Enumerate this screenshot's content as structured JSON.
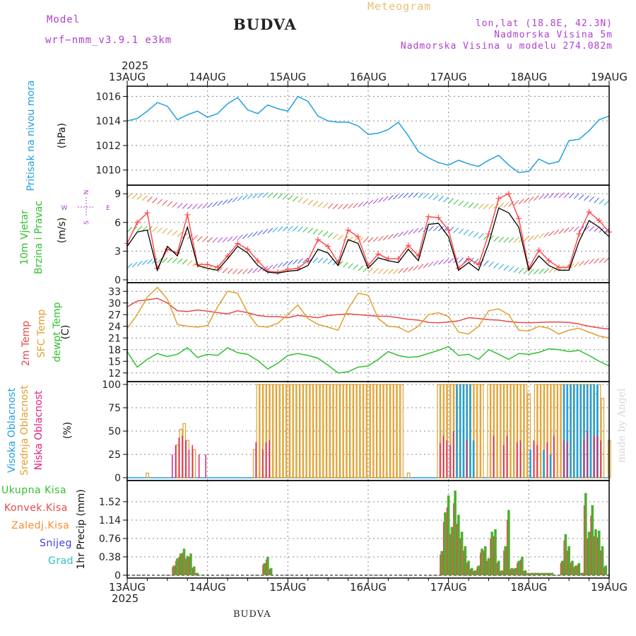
{
  "header": {
    "model_label": "Model",
    "model_name": "wrf−nmm_v3.9.1  e3km",
    "station": "BUDVA",
    "meteogram": "Meteogram",
    "lonlat": "lon,lat (18.8E, 42.3N)",
    "altitude": "Nadmorska Visina 5m",
    "model_altitude": "Nadmorska Visina u modelu 274.082m",
    "year_top": "2025",
    "year_bottom": "2025",
    "footer_station": "BUDVA",
    "watermark": "made by Angel"
  },
  "colors": {
    "pressure": "#1fa0e0",
    "wind_speed": "#000000",
    "wind_gust": "#ff4d4d",
    "temp2m": "#e84848",
    "sfc_temp": "#e0a030",
    "dewpt": "#30c030",
    "cloud_high": "#1fa0e0",
    "cloud_mid": "#e0a030",
    "cloud_low": "#e0207a",
    "precip_total": "#4caf30",
    "precip_conv": "#e84848",
    "precip_frozen": "#ff8c30",
    "precip_snow": "#4040e0",
    "precip_graupel": "#30c0c0",
    "violet": "#b040d0",
    "grid": "#888888"
  },
  "chart_data": [
    {
      "type": "line",
      "name": "pressure",
      "ylabel_1": "Pritisak na nivou mora",
      "ylabel_2": "(hPa)",
      "yticks": [
        "1016",
        "1014",
        "1012",
        "1010"
      ],
      "ylim": [
        1009,
        1016.6
      ],
      "x_hours": [
        0,
        3,
        6,
        9,
        12,
        15,
        18,
        21,
        24,
        27,
        30,
        33,
        36,
        39,
        42,
        45,
        48,
        51,
        54,
        57,
        60,
        63,
        66,
        69,
        72,
        75,
        78,
        81,
        84,
        87,
        90,
        93,
        96,
        99,
        102,
        105,
        108,
        111,
        114,
        117,
        120,
        123,
        126,
        129,
        132,
        135,
        138,
        141,
        144
      ],
      "values": [
        1014.0,
        1014.2,
        1014.8,
        1015.5,
        1015.2,
        1014.1,
        1014.5,
        1014.8,
        1014.3,
        1014.6,
        1015.4,
        1015.9,
        1014.9,
        1014.6,
        1015.3,
        1015.0,
        1014.8,
        1016.0,
        1015.6,
        1014.4,
        1014.0,
        1013.9,
        1013.9,
        1013.6,
        1012.9,
        1013.0,
        1013.3,
        1013.9,
        1012.8,
        1011.5,
        1011.0,
        1010.6,
        1010.4,
        1010.8,
        1010.5,
        1010.3,
        1010.8,
        1011.2,
        1010.4,
        1009.8,
        1009.9,
        1010.9,
        1010.5,
        1010.7,
        1012.4,
        1012.5,
        1013.2,
        1014.1,
        1014.4
      ]
    },
    {
      "type": "line",
      "name": "wind",
      "ylabel_1": "10m Vjetar",
      "ylabel_2": "Brzina i Pravac",
      "ylabel_3": "(m/s)",
      "compass": [
        "N",
        "W",
        "E",
        "S"
      ],
      "yticks": [
        "9",
        "6",
        "3",
        "0"
      ],
      "ylim": [
        0,
        9.6
      ],
      "x_hours": [
        0,
        3,
        6,
        9,
        12,
        15,
        18,
        21,
        24,
        27,
        30,
        33,
        36,
        39,
        42,
        45,
        48,
        51,
        54,
        57,
        60,
        63,
        66,
        69,
        72,
        75,
        78,
        81,
        84,
        87,
        90,
        93,
        96,
        99,
        102,
        105,
        108,
        111,
        114,
        117,
        120,
        123,
        126,
        129,
        132,
        135,
        138,
        141,
        144
      ],
      "series": [
        {
          "name": "speed",
          "values": [
            3.5,
            5.0,
            5.2,
            1.0,
            3.5,
            2.5,
            5.5,
            1.5,
            1.2,
            1.0,
            2.2,
            3.5,
            2.8,
            1.5,
            0.8,
            0.7,
            0.9,
            1.0,
            1.5,
            3.2,
            2.8,
            1.5,
            4.2,
            3.8,
            1.2,
            2.3,
            2.0,
            1.8,
            3.2,
            2.0,
            5.8,
            5.9,
            4.5,
            1.0,
            1.8,
            1.0,
            3.8,
            7.5,
            7.0,
            5.5,
            1.0,
            2.5,
            1.5,
            1.0,
            1.0,
            4.0,
            6.2,
            5.5,
            4.5
          ]
        },
        {
          "name": "gust",
          "values": [
            3.8,
            6.0,
            7.0,
            1.2,
            3.2,
            2.8,
            6.8,
            1.6,
            1.6,
            1.3,
            2.5,
            3.8,
            3.2,
            2.0,
            0.9,
            0.8,
            1.1,
            1.2,
            2.0,
            4.2,
            3.5,
            1.8,
            5.2,
            4.5,
            1.5,
            2.7,
            2.2,
            2.2,
            3.6,
            2.5,
            6.6,
            6.5,
            5.2,
            1.2,
            2.2,
            1.6,
            4.8,
            8.5,
            9.0,
            6.4,
            1.2,
            3.1,
            2.0,
            1.3,
            1.3,
            4.8,
            7.1,
            6.2,
            5.0
          ]
        }
      ]
    },
    {
      "type": "line",
      "name": "temperature",
      "ylabel_1": "2m Temp",
      "ylabel_2": "SFC Temp",
      "ylabel_3": "dewpt Temp",
      "ylabel_4": "(C)",
      "yticks": [
        "33",
        "30",
        "27",
        "24",
        "21",
        "18",
        "15",
        "12"
      ],
      "ylim": [
        10.5,
        34.5
      ],
      "x_hours": [
        0,
        3,
        6,
        9,
        12,
        15,
        18,
        21,
        24,
        27,
        30,
        33,
        36,
        39,
        42,
        45,
        48,
        51,
        54,
        57,
        60,
        63,
        66,
        69,
        72,
        75,
        78,
        81,
        84,
        87,
        90,
        93,
        96,
        99,
        102,
        105,
        108,
        111,
        114,
        117,
        120,
        123,
        126,
        129,
        132,
        135,
        138,
        141,
        144
      ],
      "series": [
        {
          "name": "temp2m",
          "values": [
            29.0,
            30.5,
            30.8,
            31.2,
            30.0,
            28.0,
            27.8,
            28.2,
            27.9,
            27.5,
            27.2,
            28.0,
            27.5,
            26.8,
            26.5,
            26.5,
            26.2,
            26.8,
            26.5,
            26.2,
            26.8,
            27.0,
            27.2,
            27.0,
            26.8,
            26.6,
            26.6,
            26.2,
            25.8,
            25.6,
            25.0,
            24.9,
            25.1,
            25.4,
            26.2,
            26.0,
            25.7,
            25.6,
            25.2,
            25.0,
            24.9,
            25.0,
            25.1,
            25.1,
            25.0,
            24.6,
            24.0,
            23.6,
            23.3
          ]
        },
        {
          "name": "sfc_temp",
          "values": [
            23.5,
            27.0,
            31.5,
            34.0,
            31.0,
            24.5,
            24.0,
            23.8,
            24.2,
            29.0,
            33.0,
            32.5,
            27.5,
            24.0,
            23.8,
            24.8,
            27.0,
            29.5,
            26.0,
            24.5,
            23.8,
            23.0,
            28.5,
            32.5,
            32.0,
            26.0,
            24.0,
            23.8,
            22.5,
            24.0,
            27.0,
            27.5,
            26.5,
            22.5,
            22.0,
            24.0,
            28.0,
            28.5,
            27.0,
            23.0,
            22.8,
            24.0,
            23.5,
            22.0,
            23.0,
            23.5,
            22.5,
            21.5,
            21.0
          ]
        },
        {
          "name": "dewpt",
          "values": [
            17.5,
            13.5,
            15.5,
            17.0,
            16.2,
            16.8,
            18.5,
            16.0,
            16.8,
            16.5,
            18.5,
            17.2,
            16.8,
            15.2,
            13.0,
            14.5,
            16.5,
            17.0,
            16.5,
            15.8,
            14.0,
            12.0,
            12.3,
            13.5,
            13.8,
            15.5,
            17.5,
            16.5,
            16.0,
            16.2,
            17.0,
            17.8,
            18.8,
            16.5,
            16.8,
            15.5,
            18.0,
            16.8,
            15.5,
            17.0,
            16.8,
            17.3,
            18.2,
            18.0,
            17.5,
            17.8,
            16.5,
            15.0,
            13.8
          ]
        }
      ]
    },
    {
      "type": "bar",
      "name": "clouds",
      "ylabel_1": "Visoka Oblacnost",
      "ylabel_2": "Srednja Oblacnost",
      "ylabel_3": "Niska Oblacnost",
      "ylabel_4": "(%)",
      "yticks": [
        "100",
        "75",
        "50",
        "25",
        "0"
      ],
      "ylim": [
        0,
        100
      ],
      "series": [
        {
          "name": "low_at_hours",
          "hours": [
            14,
            15,
            16,
            17,
            18,
            19,
            20,
            22,
            24,
            39,
            41,
            42,
            43,
            94,
            95,
            96,
            97,
            98,
            102,
            110,
            113,
            114,
            117,
            118,
            122,
            123,
            126,
            128,
            131,
            132,
            137,
            138,
            140,
            141,
            142
          ],
          "values": [
            25,
            35,
            43,
            45,
            40,
            30,
            35,
            25,
            25,
            38,
            30,
            38,
            40,
            37,
            45,
            40,
            35,
            50,
            40,
            45,
            35,
            45,
            38,
            40,
            40,
            35,
            38,
            45,
            40,
            38,
            40,
            50,
            45,
            45,
            40
          ]
        },
        {
          "name": "mid_at_hours",
          "hours": [
            6,
            15,
            16,
            17,
            18,
            20,
            38,
            39,
            40,
            41,
            42,
            43,
            44,
            45,
            46,
            47,
            48,
            49,
            50,
            51,
            52,
            53,
            54,
            55,
            56,
            57,
            58,
            59,
            60,
            61,
            62,
            63,
            64,
            65,
            66,
            67,
            68,
            69,
            70,
            71,
            72,
            73,
            74,
            75,
            76,
            77,
            78,
            79,
            80,
            81,
            82,
            84,
            93,
            94,
            95,
            96,
            97,
            98,
            99,
            100,
            101,
            102,
            103,
            104,
            105,
            106,
            108,
            109,
            110,
            111,
            112,
            113,
            114,
            115,
            116,
            117,
            118,
            119,
            120,
            122,
            123,
            124,
            125,
            126,
            127,
            128,
            129,
            130,
            131,
            132,
            133,
            134,
            135,
            136,
            137,
            138,
            139,
            140,
            141,
            142,
            144
          ],
          "values": [
            5,
            35,
            52,
            58,
            40,
            30,
            30,
            100,
            100,
            100,
            100,
            100,
            100,
            100,
            100,
            100,
            100,
            100,
            100,
            100,
            100,
            100,
            100,
            100,
            100,
            100,
            100,
            100,
            100,
            100,
            100,
            100,
            100,
            100,
            100,
            100,
            100,
            100,
            100,
            100,
            100,
            100,
            100,
            100,
            100,
            100,
            100,
            100,
            100,
            100,
            100,
            5,
            100,
            100,
            100,
            100,
            100,
            100,
            100,
            100,
            100,
            100,
            100,
            100,
            100,
            100,
            100,
            100,
            100,
            100,
            100,
            100,
            100,
            100,
            100,
            100,
            100,
            100,
            90,
            100,
            100,
            100,
            100,
            100,
            100,
            100,
            100,
            100,
            100,
            100,
            100,
            100,
            100,
            100,
            100,
            100,
            100,
            90,
            100,
            85,
            40
          ]
        },
        {
          "name": "high_at_hours",
          "hours": [
            98,
            99,
            100,
            101,
            102,
            103,
            120,
            124,
            126,
            130,
            131,
            132,
            133,
            134,
            135,
            136,
            137,
            138,
            139,
            140
          ],
          "values": [
            100,
            100,
            100,
            100,
            100,
            40,
            30,
            30,
            25,
            100,
            100,
            100,
            100,
            100,
            100,
            100,
            100,
            100,
            100,
            100
          ]
        }
      ]
    },
    {
      "type": "bar",
      "name": "precipitation",
      "ylabel_1": "1hr Precip (mm)",
      "legend": [
        "Ukupna Kisa",
        "Konvek.Kisa",
        "Zaledj.Kisa",
        "Snijeg",
        "Grad"
      ],
      "yticks": [
        "1.52",
        "1.14",
        "0.76",
        "0.38",
        "0"
      ],
      "ylim": [
        0,
        1.9
      ],
      "hours": [
        14,
        15,
        16,
        17,
        18,
        19,
        20,
        21,
        41,
        42,
        43,
        94,
        95,
        96,
        97,
        98,
        99,
        100,
        101,
        102,
        103,
        104,
        105,
        106,
        107,
        108,
        109,
        110,
        111,
        112,
        113,
        114,
        115,
        116,
        117,
        118,
        119,
        120,
        121,
        122,
        123,
        124,
        125,
        126,
        127,
        130,
        131,
        132,
        133,
        134,
        135,
        136,
        137,
        138,
        139,
        140,
        141,
        142,
        143
      ],
      "values": [
        0.2,
        0.35,
        0.45,
        0.55,
        0.4,
        0.45,
        0.18,
        0.05,
        0.25,
        0.38,
        0.15,
        0.5,
        1.3,
        1.65,
        1.0,
        1.75,
        1.25,
        0.9,
        0.6,
        0.3,
        0.15,
        0.1,
        0.2,
        0.55,
        0.6,
        0.35,
        0.9,
        0.95,
        0.3,
        0.1,
        0.6,
        1.35,
        0.15,
        0.15,
        0.3,
        0.38,
        0.1,
        0.05,
        0.05,
        0.05,
        0.05,
        0.05,
        0.05,
        0.05,
        0.05,
        0.3,
        0.85,
        0.6,
        0.3,
        0.2,
        0.25,
        0.05,
        1.7,
        0.9,
        1.45,
        0.95,
        0.92,
        0.6,
        0.2
      ]
    }
  ],
  "x_axis": {
    "labels": [
      "13AUG",
      "14AUG",
      "15AUG",
      "16AUG",
      "17AUG",
      "18AUG",
      "19AUG"
    ],
    "hours": [
      0,
      24,
      48,
      72,
      96,
      120,
      144
    ]
  }
}
